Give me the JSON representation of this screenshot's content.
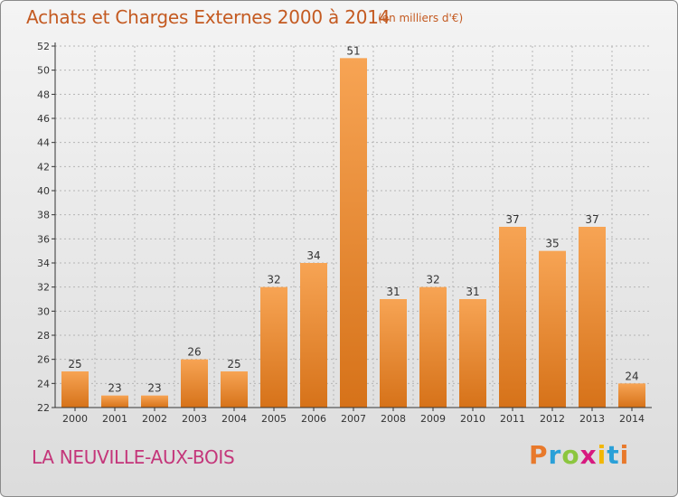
{
  "header": {
    "title": "Achats et Charges Externes 2000 à 2014",
    "subtitle": "(en milliers d'€)"
  },
  "footer": {
    "commune": "LA NEUVILLE-AUX-BOIS",
    "logo_text": "Proxiti",
    "logo_colors": [
      "#e8792b",
      "#2aa0d8",
      "#8cc63f",
      "#d7197f",
      "#f2b705",
      "#2aa0d8",
      "#e8792b"
    ]
  },
  "colors": {
    "bar_light": "#f7a454",
    "bar_dark": "#d67219",
    "axis": "#333333",
    "grid": "#b5b5b5",
    "title": "#c45a21",
    "commune": "#c4367a"
  },
  "chart_data": {
    "type": "bar",
    "categories": [
      "2000",
      "2001",
      "2002",
      "2003",
      "2004",
      "2005",
      "2006",
      "2007",
      "2008",
      "2009",
      "2010",
      "2011",
      "2012",
      "2013",
      "2014"
    ],
    "values": [
      25,
      23,
      23,
      26,
      25,
      32,
      34,
      51,
      31,
      32,
      31,
      37,
      35,
      37,
      24
    ],
    "title": "Achats et Charges Externes 2000 à 2014",
    "subtitle": "(en milliers d'€)",
    "xlabel": "",
    "ylabel": "",
    "ylim": [
      22,
      52
    ],
    "yticks": [
      22,
      24,
      26,
      28,
      30,
      32,
      34,
      36,
      38,
      40,
      42,
      44,
      46,
      48,
      50,
      52
    ],
    "grid": true,
    "data_labels": true
  }
}
